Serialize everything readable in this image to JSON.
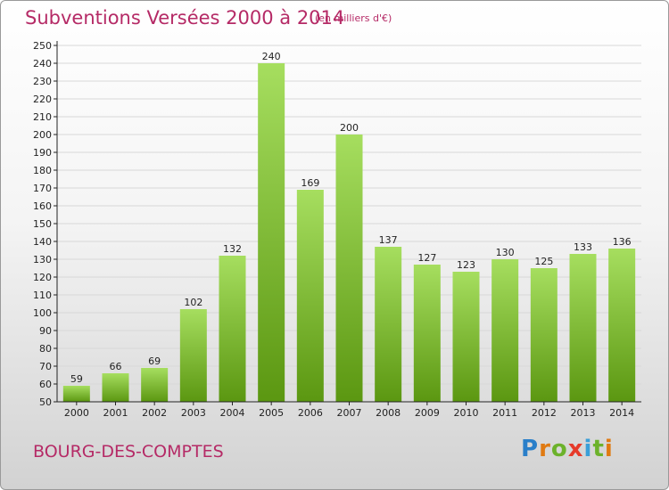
{
  "header": {
    "title": "Subventions Versées 2000 à 2014",
    "subtitle": "(en milliers d'€)"
  },
  "footer": {
    "commune": "BOURG-DES-COMPTES",
    "logo_text": "Proxiti"
  },
  "chart_data": {
    "type": "bar",
    "title": "Subventions Versées 2000 à 2014",
    "subtitle": "(en milliers d'€)",
    "xlabel": "",
    "ylabel": "",
    "categories": [
      "2000",
      "2001",
      "2002",
      "2003",
      "2004",
      "2005",
      "2006",
      "2007",
      "2008",
      "2009",
      "2010",
      "2011",
      "2012",
      "2013",
      "2014"
    ],
    "values": [
      59,
      66,
      69,
      102,
      132,
      240,
      169,
      200,
      137,
      127,
      123,
      130,
      125,
      133,
      136
    ],
    "ylim": [
      50,
      250
    ],
    "ytick_step": 10,
    "grid": true,
    "legend": "none",
    "colors": {
      "bar_light": "#9fd857",
      "bar_dark": "#5e9a12",
      "text": "#b52a66",
      "grid": "#dcdcdc",
      "axis": "#222222"
    }
  }
}
